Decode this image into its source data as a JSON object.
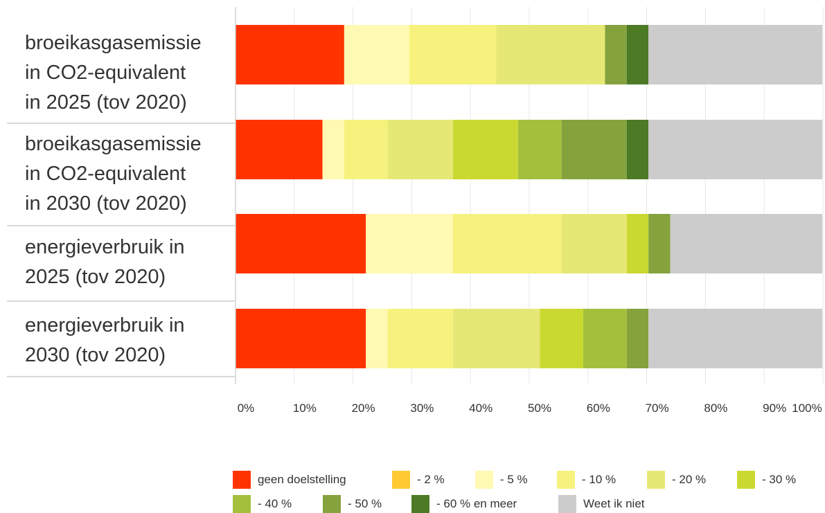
{
  "chart_data": {
    "type": "bar",
    "orientation": "horizontal",
    "stacked": true,
    "categories": [
      "broeikasgasemissie in CO2-equivalent in 2025 (tov 2020)",
      "broeikasgasemissie in CO2-equivalent in 2030 (tov 2020)",
      "energieverbruik in 2025 (tov 2020)",
      "energieverbruik in 2030 (tov 2020)"
    ],
    "category_lines": [
      [
        "broeikasgasemissie",
        "in CO2-equivalent",
        "in 2025 (tov 2020)"
      ],
      [
        "broeikasgasemissie",
        "in CO2-equivalent",
        "in 2030 (tov 2020)"
      ],
      [
        "energieverbruik in",
        "2025 (tov 2020)"
      ],
      [
        "energieverbruik in",
        "2030 (tov 2020)"
      ]
    ],
    "series": [
      {
        "name": "geen doelstelling",
        "color": "#ff3300",
        "values": [
          18.5,
          14.8,
          22.2,
          22.2
        ]
      },
      {
        "name": "- 2 %",
        "color": "#ffc933",
        "values": [
          0,
          0,
          0,
          0
        ]
      },
      {
        "name": "- 5 %",
        "color": "#fff9b3",
        "values": [
          11.1,
          3.7,
          14.8,
          3.7
        ]
      },
      {
        "name": "- 10 %",
        "color": "#f6f27d",
        "values": [
          14.8,
          7.4,
          18.5,
          11.1
        ]
      },
      {
        "name": "- 20 %",
        "color": "#e6e875",
        "values": [
          18.5,
          11.1,
          11.1,
          14.8
        ]
      },
      {
        "name": "- 30 %",
        "color": "#cad931",
        "values": [
          0,
          11.1,
          3.7,
          7.4
        ]
      },
      {
        "name": "- 40 %",
        "color": "#a4bf3b",
        "values": [
          0,
          7.4,
          0,
          7.4
        ]
      },
      {
        "name": "- 50 %",
        "color": "#85a23d",
        "values": [
          3.7,
          11.1,
          3.7,
          3.7
        ]
      },
      {
        "name": "- 60 % en meer",
        "color": "#4c7a25",
        "values": [
          3.7,
          3.7,
          0,
          0
        ]
      },
      {
        "name": "Weet ik niet",
        "color": "#cccccc",
        "values": [
          29.6,
          29.6,
          25.9,
          29.6
        ]
      }
    ],
    "xlim": [
      0,
      100
    ],
    "x_ticks": [
      "0%",
      "10%",
      "20%",
      "30%",
      "40%",
      "50%",
      "60%",
      "70%",
      "80%",
      "90%",
      "100%"
    ],
    "grid": true,
    "legend_position": "bottom"
  }
}
